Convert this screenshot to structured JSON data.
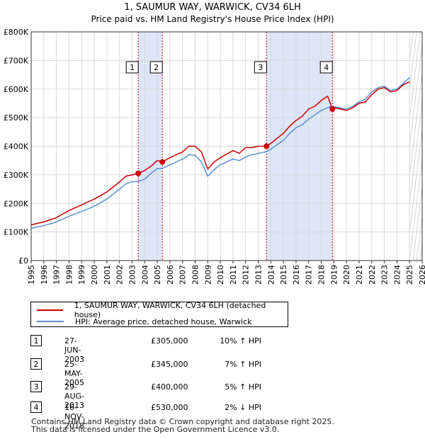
{
  "chart_data": {
    "type": "line",
    "title": "1, SAUMUR WAY, WARWICK, CV34 6LH",
    "subtitle": "Price paid vs. HM Land Registry's House Price Index (HPI)",
    "xlabel": "",
    "ylabel": "",
    "xlim": [
      1995,
      2026
    ],
    "ylim": [
      0,
      800000
    ],
    "x_ticks": [
      "1995",
      "1996",
      "1997",
      "1998",
      "1999",
      "2000",
      "2001",
      "2002",
      "2003",
      "2004",
      "2005",
      "2006",
      "2007",
      "2008",
      "2009",
      "2010",
      "2011",
      "2012",
      "2013",
      "2014",
      "2015",
      "2016",
      "2017",
      "2018",
      "2019",
      "2020",
      "2021",
      "2022",
      "2023",
      "2024",
      "2025",
      "2026"
    ],
    "y_ticks": [
      {
        "value": 0,
        "label": "£0"
      },
      {
        "value": 100000,
        "label": "£100K"
      },
      {
        "value": 200000,
        "label": "£200K"
      },
      {
        "value": 300000,
        "label": "£300K"
      },
      {
        "value": 400000,
        "label": "£400K"
      },
      {
        "value": 500000,
        "label": "£500K"
      },
      {
        "value": 600000,
        "label": "£600K"
      },
      {
        "value": 700000,
        "label": "£700K"
      },
      {
        "value": 800000,
        "label": "£800K"
      }
    ],
    "grid": true,
    "series": [
      {
        "name": "1, SAUMUR WAY, WARWICK, CV34 6LH (detached house)",
        "color": "#cc0000",
        "x": [
          1995.0,
          1996.0,
          1997.0,
          1998.0,
          1999.0,
          2000.0,
          2001.0,
          2002.0,
          2002.5,
          2003.0,
          2003.49,
          2004.0,
          2004.5,
          2005.0,
          2005.4,
          2006.0,
          2007.0,
          2007.5,
          2008.0,
          2008.5,
          2009.0,
          2009.5,
          2010.0,
          2011.0,
          2011.5,
          2012.0,
          2012.5,
          2013.0,
          2013.66,
          2014.0,
          2015.0,
          2015.5,
          2016.0,
          2016.5,
          2017.0,
          2017.5,
          2018.0,
          2018.5,
          2018.88,
          2019.0,
          2019.5,
          2020.0,
          2020.5,
          2021.0,
          2021.5,
          2022.0,
          2022.5,
          2023.0,
          2023.5,
          2024.0,
          2024.5,
          2025.0
        ],
        "y": [
          125000,
          135000,
          150000,
          175000,
          195000,
          215000,
          240000,
          275000,
          295000,
          300000,
          305000,
          315000,
          330000,
          350000,
          345000,
          360000,
          380000,
          400000,
          400000,
          380000,
          320000,
          345000,
          360000,
          385000,
          375000,
          395000,
          395000,
          400000,
          400000,
          410000,
          445000,
          470000,
          490000,
          505000,
          530000,
          540000,
          560000,
          575000,
          530000,
          535000,
          530000,
          525000,
          535000,
          550000,
          555000,
          580000,
          600000,
          605000,
          590000,
          595000,
          615000,
          625000
        ]
      },
      {
        "name": "HPI: Average price, detached house, Warwick",
        "color": "#5b8fd0",
        "x": [
          1995.0,
          1996.0,
          1997.0,
          1998.0,
          1999.0,
          2000.0,
          2001.0,
          2002.0,
          2002.5,
          2003.0,
          2003.49,
          2004.0,
          2004.5,
          2005.0,
          2005.4,
          2006.0,
          2007.0,
          2007.5,
          2008.0,
          2008.5,
          2009.0,
          2009.5,
          2010.0,
          2011.0,
          2011.5,
          2012.0,
          2012.5,
          2013.0,
          2013.66,
          2014.0,
          2015.0,
          2015.5,
          2016.0,
          2016.5,
          2017.0,
          2017.5,
          2018.0,
          2018.5,
          2018.88,
          2019.0,
          2019.5,
          2020.0,
          2020.5,
          2021.0,
          2021.5,
          2022.0,
          2022.5,
          2023.0,
          2023.5,
          2024.0,
          2024.5,
          2025.0
        ],
        "y": [
          113000,
          122000,
          135000,
          155000,
          172000,
          190000,
          215000,
          250000,
          268000,
          276000,
          277000,
          285000,
          305000,
          322000,
          322000,
          335000,
          355000,
          370000,
          368000,
          345000,
          295000,
          318000,
          335000,
          355000,
          350000,
          362000,
          370000,
          375000,
          381000,
          390000,
          420000,
          445000,
          465000,
          475000,
          495000,
          510000,
          525000,
          535000,
          540000,
          538000,
          534000,
          530000,
          540000,
          555000,
          565000,
          590000,
          605000,
          610000,
          595000,
          600000,
          620000,
          640000
        ]
      }
    ],
    "markers": [
      {
        "label": "1",
        "x": 2003.49,
        "y": 305000
      },
      {
        "label": "2",
        "x": 2005.4,
        "y": 345000
      },
      {
        "label": "3",
        "x": 2013.66,
        "y": 400000
      },
      {
        "label": "4",
        "x": 2018.88,
        "y": 530000
      }
    ],
    "shaded_ranges": [
      {
        "from": 2003.49,
        "to": 2005.4
      },
      {
        "from": 2013.66,
        "to": 2018.88
      }
    ],
    "forecast_from": 2025.0,
    "colors": {
      "price": "#cc0000",
      "hpi": "#5b8fd0",
      "shade": "#dde6f7",
      "grid": "#d8d8d8",
      "marker_line": "#cc0000"
    }
  },
  "legend": {
    "items": [
      {
        "label": "1, SAUMUR WAY, WARWICK, CV34 6LH (detached house)",
        "color": "#cc0000"
      },
      {
        "label": "HPI: Average price, detached house, Warwick",
        "color": "#5b8fd0"
      }
    ]
  },
  "transactions": [
    {
      "num": "1",
      "date": "27-JUN-2003",
      "price": "£305,000",
      "hpi": "10% ↑ HPI"
    },
    {
      "num": "2",
      "date": "25-MAY-2005",
      "price": "£345,000",
      "hpi": "7% ↑ HPI"
    },
    {
      "num": "3",
      "date": "29-AUG-2013",
      "price": "£400,000",
      "hpi": "5% ↑ HPI"
    },
    {
      "num": "4",
      "date": "16-NOV-2018",
      "price": "£530,000",
      "hpi": "2% ↓ HPI"
    }
  ],
  "footer": {
    "line1": "Contains HM Land Registry data © Crown copyright and database right 2025.",
    "line2": "This data is licensed under the Open Government Licence v3.0."
  }
}
